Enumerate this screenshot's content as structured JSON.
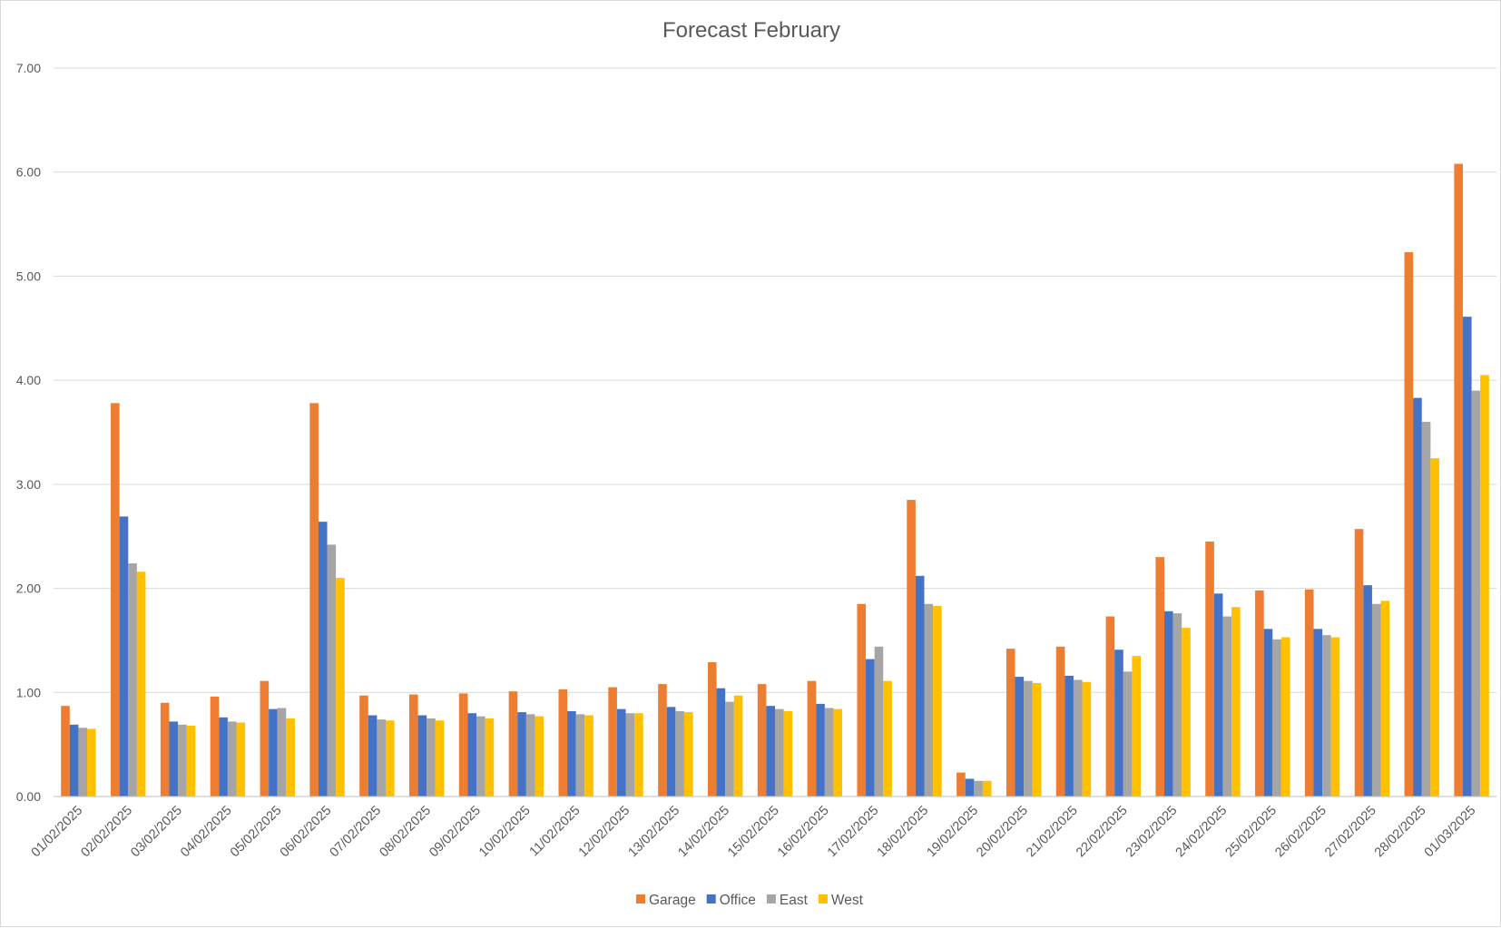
{
  "chart_data": {
    "type": "bar",
    "title": "Forecast February",
    "xlabel": "",
    "ylabel": "",
    "ylim": [
      0,
      7
    ],
    "yticks": [
      "0.00",
      "1.00",
      "2.00",
      "3.00",
      "4.00",
      "5.00",
      "6.00",
      "7.00"
    ],
    "grid": true,
    "legend_position": "bottom",
    "categories": [
      "01/02/2025",
      "02/02/2025",
      "03/02/2025",
      "04/02/2025",
      "05/02/2025",
      "06/02/2025",
      "07/02/2025",
      "08/02/2025",
      "09/02/2025",
      "10/02/2025",
      "11/02/2025",
      "12/02/2025",
      "13/02/2025",
      "14/02/2025",
      "15/02/2025",
      "16/02/2025",
      "17/02/2025",
      "18/02/2025",
      "19/02/2025",
      "20/02/2025",
      "21/02/2025",
      "22/02/2025",
      "23/02/2025",
      "24/02/2025",
      "25/02/2025",
      "26/02/2025",
      "27/02/2025",
      "28/02/2025",
      "01/03/2025"
    ],
    "series": [
      {
        "name": "Garage",
        "color": "#ED7D31",
        "values": [
          0.87,
          3.78,
          0.9,
          0.96,
          1.11,
          3.78,
          0.97,
          0.98,
          0.99,
          1.01,
          1.03,
          1.05,
          1.08,
          1.29,
          1.08,
          1.11,
          1.85,
          2.85,
          0.23,
          1.42,
          1.44,
          1.73,
          2.3,
          2.45,
          1.98,
          1.99,
          2.57,
          5.23,
          6.08
        ]
      },
      {
        "name": "Office",
        "color": "#4472C4",
        "values": [
          0.69,
          2.69,
          0.72,
          0.76,
          0.84,
          2.64,
          0.78,
          0.78,
          0.8,
          0.81,
          0.82,
          0.84,
          0.86,
          1.04,
          0.87,
          0.89,
          1.32,
          2.12,
          0.17,
          1.15,
          1.16,
          1.41,
          1.78,
          1.95,
          1.61,
          1.61,
          2.03,
          3.83,
          4.61
        ]
      },
      {
        "name": "East",
        "color": "#A5A5A5",
        "values": [
          0.66,
          2.24,
          0.69,
          0.72,
          0.85,
          2.42,
          0.74,
          0.75,
          0.77,
          0.79,
          0.79,
          0.8,
          0.82,
          0.91,
          0.84,
          0.85,
          1.44,
          1.85,
          0.15,
          1.11,
          1.12,
          1.2,
          1.76,
          1.73,
          1.51,
          1.55,
          1.85,
          3.6,
          3.9
        ]
      },
      {
        "name": "West",
        "color": "#FFC000",
        "values": [
          0.65,
          2.16,
          0.68,
          0.71,
          0.75,
          2.1,
          0.73,
          0.73,
          0.75,
          0.77,
          0.78,
          0.8,
          0.81,
          0.97,
          0.82,
          0.84,
          1.11,
          1.83,
          0.15,
          1.09,
          1.1,
          1.35,
          1.62,
          1.82,
          1.53,
          1.53,
          1.88,
          3.25,
          4.05
        ]
      }
    ]
  }
}
